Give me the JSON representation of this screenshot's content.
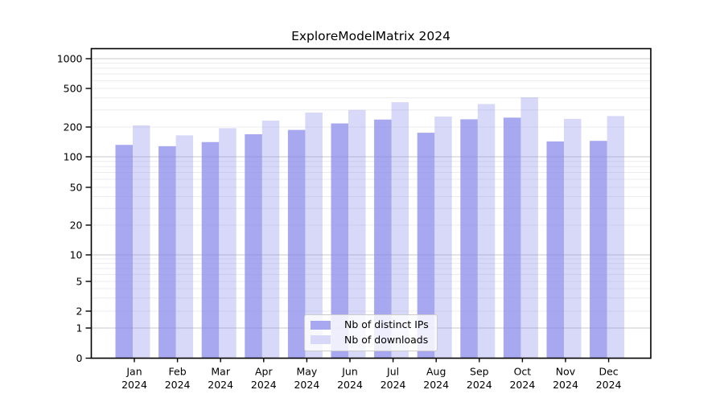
{
  "header": {
    "title": "ExploreModelMatrix 2024"
  },
  "chart_data": {
    "type": "bar",
    "title": "ExploreModelMatrix 2024",
    "categories": [
      "Jan 2024",
      "Feb 2024",
      "Mar 2024",
      "Apr 2024",
      "May 2024",
      "Jun 2024",
      "Jul 2024",
      "Aug 2024",
      "Sep 2024",
      "Oct 2024",
      "Nov 2024",
      "Dec 2024"
    ],
    "series": [
      {
        "name": "Nb of distinct IPs",
        "color": "#a8a8f0",
        "values": [
          132,
          128,
          141,
          169,
          187,
          218,
          239,
          175,
          240,
          250,
          143,
          145
        ]
      },
      {
        "name": "Nb of downloads",
        "color": "#d8d8f9",
        "values": [
          208,
          165,
          195,
          233,
          282,
          300,
          361,
          257,
          345,
          405,
          243,
          260
        ]
      }
    ],
    "xlabel": "",
    "ylabel": "",
    "yticks": [
      0,
      1,
      2,
      5,
      10,
      20,
      50,
      100,
      200,
      500,
      1000
    ],
    "ylim": [
      0,
      1000
    ],
    "yscale": "log-like with 0 baseline",
    "grid": true,
    "legend_position": "lower center",
    "colors": {
      "bar_base": "#8686ea",
      "series1_alpha": 0.72,
      "series2_alpha": 0.32,
      "grid_major": "#c9c9c9",
      "grid_minor": "#ececec",
      "axis": "#000000"
    }
  }
}
